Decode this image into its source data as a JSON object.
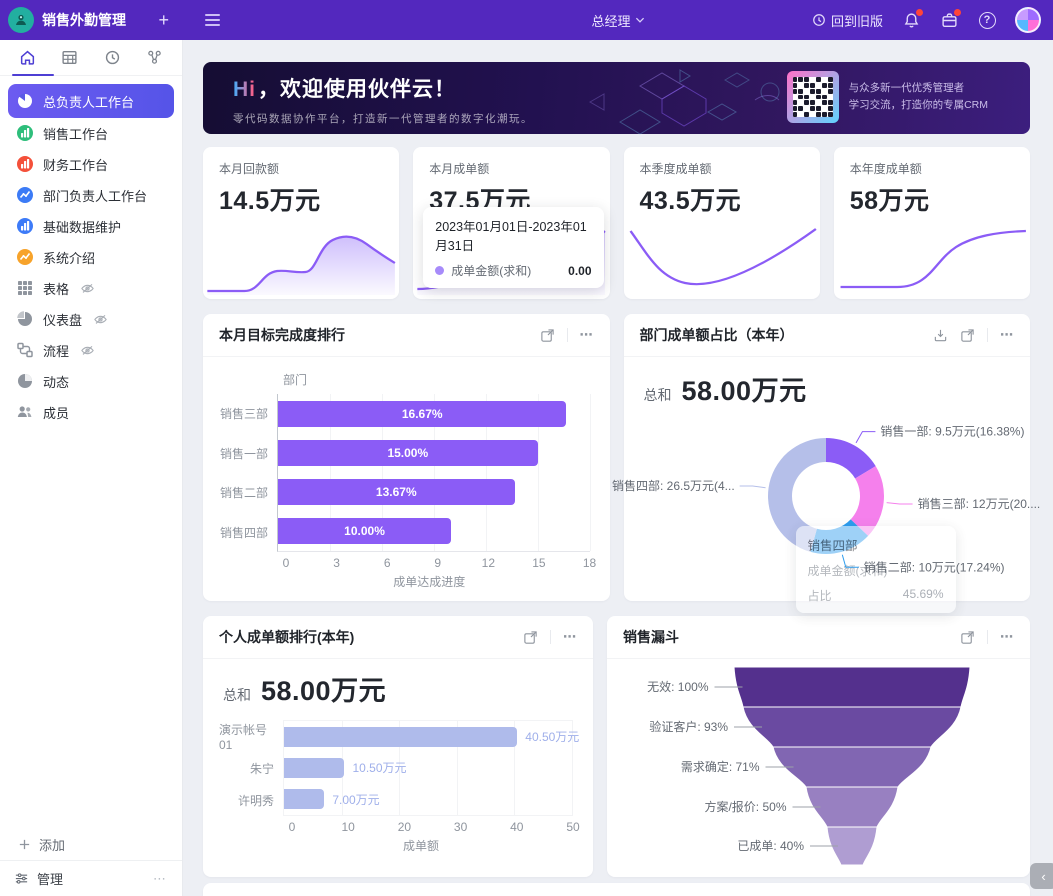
{
  "app": {
    "title": "销售外勤管理"
  },
  "navbar": {
    "role": "总经理",
    "back_to_old": "回到旧版"
  },
  "sidebar": {
    "items": [
      {
        "label": "总负责人工作台",
        "icon": "pie-chart-icon",
        "icon_color": "#FFFFFF",
        "active": true,
        "hidden_eye": false
      },
      {
        "label": "销售工作台",
        "icon": "bar-chart-icon",
        "icon_color": "#2EBE7B",
        "active": false,
        "hidden_eye": false
      },
      {
        "label": "财务工作台",
        "icon": "bar-chart-icon",
        "icon_color": "#F4503A",
        "active": false,
        "hidden_eye": false
      },
      {
        "label": "部门负责人工作台",
        "icon": "line-chart-icon",
        "icon_color": "#3C7BF6",
        "active": false,
        "hidden_eye": false
      },
      {
        "label": "基础数据维护",
        "icon": "bar-chart-icon",
        "icon_color": "#3D7BF8",
        "active": false,
        "hidden_eye": false
      },
      {
        "label": "系统介绍",
        "icon": "line-chart-icon",
        "icon_color": "#F7A32B",
        "active": false,
        "hidden_eye": false
      },
      {
        "label": "表格",
        "icon": "grid-icon",
        "icon_color": "#8F959E",
        "active": false,
        "hidden_eye": true
      },
      {
        "label": "仪表盘",
        "icon": "gauge-icon",
        "icon_color": "#8F959E",
        "active": false,
        "hidden_eye": true
      },
      {
        "label": "流程",
        "icon": "flow-icon",
        "icon_color": "#8F959E",
        "active": false,
        "hidden_eye": true
      },
      {
        "label": "动态",
        "icon": "activity-icon",
        "icon_color": "#8F959E",
        "active": false,
        "hidden_eye": false
      },
      {
        "label": "成员",
        "icon": "members-icon",
        "icon_color": "#8F959E",
        "active": false,
        "hidden_eye": false
      }
    ],
    "add_label": "添加",
    "manage_label": "管理"
  },
  "banner": {
    "title_hi": "Hi",
    "title_rest": "，欢迎使用伙伴云！",
    "subtitle": "零代码数据协作平台，打造新一代管理者的数字化潮玩。",
    "qr_caption_line1": "与众多新一代优秀管理者",
    "qr_caption_line2": "学习交流，打造你的专属CRM"
  },
  "stat_cards": [
    {
      "label": "本月回款额",
      "value": "14.5万元"
    },
    {
      "label": "本月成单额",
      "value": "37.5万元",
      "tooltip": {
        "title": "2023年01月01日-2023年01月31日",
        "series": "成单金额(求和)",
        "value": "0.00",
        "dot_color": "#A78BFA"
      }
    },
    {
      "label": "本季度成单额",
      "value": "43.5万元"
    },
    {
      "label": "本年度成单额",
      "value": "58万元"
    }
  ],
  "chart_data": [
    {
      "id": "target-completion-ranking",
      "type": "bar",
      "title": "本月目标完成度排行",
      "y_axis_title": "部门",
      "categories": [
        "销售三部",
        "销售一部",
        "销售二部",
        "销售四部"
      ],
      "values": [
        16.67,
        15.0,
        13.67,
        10.0
      ],
      "value_labels": [
        "16.67%",
        "15.00%",
        "13.67%",
        "10.00%"
      ],
      "xlim": [
        0,
        18
      ],
      "x_ticks": [
        0,
        3,
        6,
        9,
        12,
        15,
        18
      ],
      "xlabel": "成单达成进度",
      "bar_color": "#8B5CF6",
      "label_position": "inside"
    },
    {
      "id": "dept-deal-share",
      "type": "donut",
      "title": "部门成单额占比（本年）",
      "total_label": "总和",
      "total_value": "58.00万元",
      "slices": [
        {
          "name": "销售一部",
          "pct": 16.38,
          "label": "销售一部:  9.5万元(16.38%)",
          "color": "#8B5CF6"
        },
        {
          "name": "销售三部",
          "pct": 20.69,
          "label": "销售三部:  12万元(20....",
          "color": "#F580EC"
        },
        {
          "name": "销售二部",
          "pct": 17.24,
          "label": "销售二部:  10万元(17.24%)",
          "color": "#2D9CEE"
        },
        {
          "name": "销售四部",
          "pct": 45.69,
          "label": "销售四部:  26.5万元(4...",
          "color": "#B5BFE9"
        }
      ],
      "tooltip": {
        "title": "销售四部",
        "rows": [
          {
            "label": "成单金额(求和)",
            "value": ""
          },
          {
            "label": "占比",
            "value": "45.69%"
          }
        ]
      }
    },
    {
      "id": "personal-deal-ranking",
      "type": "bar",
      "title": "个人成单额排行(本年)",
      "total_label": "总和",
      "total_value": "58.00万元",
      "categories": [
        "演示帐号01",
        "朱宁",
        "许明秀"
      ],
      "values": [
        40.5,
        10.5,
        7.0
      ],
      "value_labels": [
        "40.50万元",
        "10.50万元",
        "7.00万元"
      ],
      "xlim": [
        0,
        50
      ],
      "x_ticks": [
        0,
        10,
        20,
        30,
        40,
        50
      ],
      "xlabel": "成单额",
      "bar_color": "#AFBBEB",
      "label_color": "#9FAFEA",
      "label_position": "outside"
    },
    {
      "id": "sales-funnel",
      "type": "funnel",
      "title": "销售漏斗",
      "stages": [
        {
          "label": "无效: 100%",
          "pct": 100,
          "color": "#54308D"
        },
        {
          "label": "验证客户: 93%",
          "pct": 93,
          "color": "#6A4AA1"
        },
        {
          "label": "需求确定: 71%",
          "pct": 71,
          "color": "#8166B2"
        },
        {
          "label": "方案/报价: 50%",
          "pct": 50,
          "color": "#9880C1"
        },
        {
          "label": "已成单: 40%",
          "pct": 40,
          "color": "#AF9DD2"
        }
      ]
    }
  ]
}
